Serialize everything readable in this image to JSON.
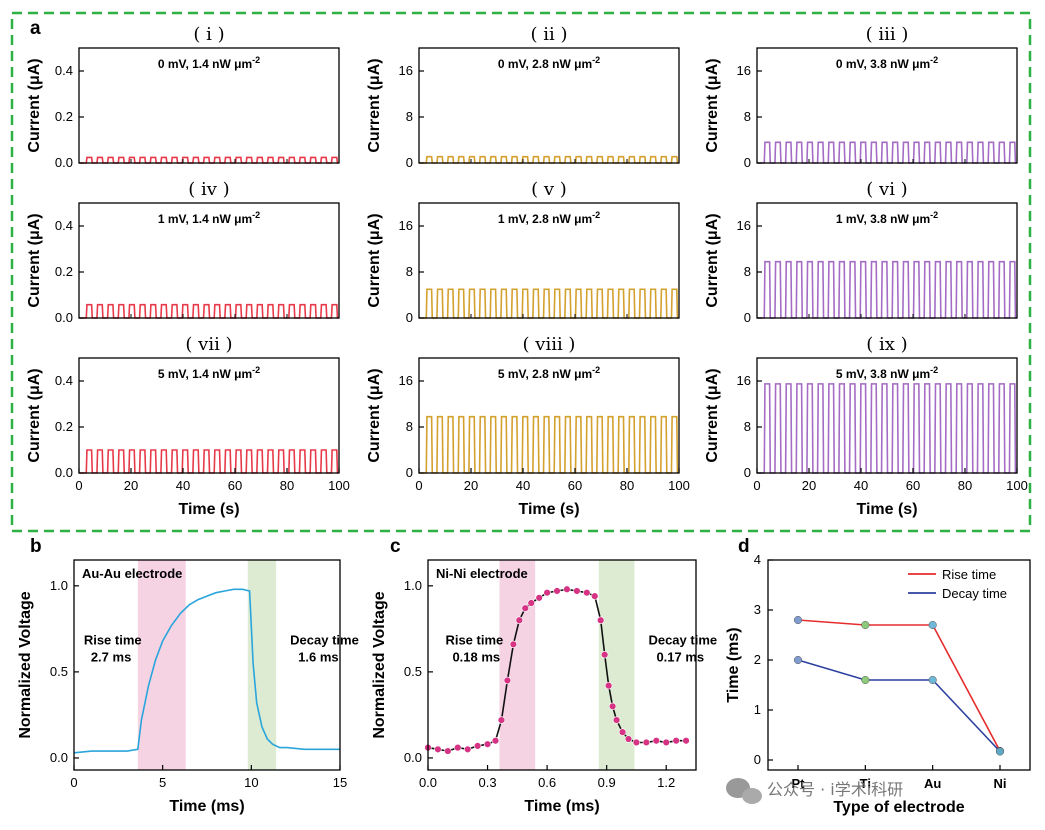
{
  "figure": {
    "dashed_box_color": "#2bb043",
    "watermark": "公众号 · i学术i科研",
    "watermark_icon": "wechat-icon"
  },
  "chart_data": [
    {
      "id": "a-i",
      "panel_label": "a",
      "type": "line",
      "title": "( i )",
      "annotation": "0 mV, 1.4 nW μm⁻²",
      "ylabel": "Current (μA)",
      "xlabel": "",
      "xlim": [
        0,
        100
      ],
      "ylim": [
        0,
        0.5
      ],
      "yticks": [
        0.0,
        0.2,
        0.4
      ],
      "xticks": [],
      "yticklabels": [
        "0.0",
        "0.2",
        "0.4"
      ],
      "color": "#e8394a",
      "pulse_period_s": 4.1,
      "pulse_amplitude": 0.024
    },
    {
      "id": "a-ii",
      "type": "line",
      "title": "( ii )",
      "annotation": "0 mV, 2.8 nW μm⁻²",
      "ylabel": "Current (μA)",
      "xlabel": "",
      "xlim": [
        0,
        100
      ],
      "ylim": [
        0,
        20
      ],
      "yticks": [
        0,
        8,
        16
      ],
      "xticks": [],
      "yticklabels": [
        "0",
        "8",
        "16"
      ],
      "color": "#d4a02e",
      "pulse_period_s": 4.1,
      "pulse_amplitude": 1.1
    },
    {
      "id": "a-iii",
      "type": "line",
      "title": "( iii )",
      "annotation": "0 mV, 3.8 nW μm⁻²",
      "ylabel": "Current (μA)",
      "xlabel": "",
      "xlim": [
        0,
        100
      ],
      "ylim": [
        0,
        20
      ],
      "yticks": [
        0,
        8,
        16
      ],
      "xticks": [],
      "yticklabels": [
        "0",
        "8",
        "16"
      ],
      "color": "#a46cc4",
      "pulse_period_s": 4.1,
      "pulse_amplitude": 3.6
    },
    {
      "id": "a-iv",
      "type": "line",
      "title": "( iv )",
      "annotation": "1 mV, 1.4 nW μm⁻²",
      "ylabel": "Current (μA)",
      "xlabel": "",
      "xlim": [
        0,
        100
      ],
      "ylim": [
        0,
        0.5
      ],
      "yticks": [
        0.0,
        0.2,
        0.4
      ],
      "xticks": [],
      "yticklabels": [
        "0.0",
        "0.2",
        "0.4"
      ],
      "color": "#e8394a",
      "pulse_period_s": 4.1,
      "pulse_amplitude": 0.058
    },
    {
      "id": "a-v",
      "type": "line",
      "title": "( v )",
      "annotation": "1 mV, 2.8 nW μm⁻²",
      "ylabel": "Current (μA)",
      "xlabel": "",
      "xlim": [
        0,
        100
      ],
      "ylim": [
        0,
        20
      ],
      "yticks": [
        0,
        8,
        16
      ],
      "xticks": [],
      "yticklabels": [
        "0",
        "8",
        "16"
      ],
      "color": "#d4a02e",
      "pulse_period_s": 4.1,
      "pulse_amplitude": 5.0
    },
    {
      "id": "a-vi",
      "type": "line",
      "title": "( vi )",
      "annotation": "1 mV, 3.8 nW μm⁻²",
      "ylabel": "Current (μA)",
      "xlabel": "",
      "xlim": [
        0,
        100
      ],
      "ylim": [
        0,
        20
      ],
      "yticks": [
        0,
        8,
        16
      ],
      "xticks": [],
      "yticklabels": [
        "0",
        "8",
        "16"
      ],
      "color": "#a46cc4",
      "pulse_period_s": 4.1,
      "pulse_amplitude": 9.8
    },
    {
      "id": "a-vii",
      "type": "line",
      "title": "( vii )",
      "annotation": "5 mV, 1.4 nW μm⁻²",
      "ylabel": "Current (μA)",
      "xlabel": "Time (s)",
      "xlim": [
        0,
        100
      ],
      "ylim": [
        0,
        0.5
      ],
      "yticks": [
        0.0,
        0.2,
        0.4
      ],
      "xticks": [
        0,
        20,
        40,
        60,
        80,
        100
      ],
      "yticklabels": [
        "0.0",
        "0.2",
        "0.4"
      ],
      "xticklabels": [
        "0",
        "20",
        "40",
        "60",
        "80",
        "100"
      ],
      "color": "#e8394a",
      "pulse_period_s": 4.1,
      "pulse_amplitude": 0.1
    },
    {
      "id": "a-viii",
      "type": "line",
      "title": "( viii )",
      "annotation": "5 mV, 2.8 nW μm⁻²",
      "ylabel": "Current (μA)",
      "xlabel": "Time (s)",
      "xlim": [
        0,
        100
      ],
      "ylim": [
        0,
        20
      ],
      "yticks": [
        0,
        8,
        16
      ],
      "xticks": [
        0,
        20,
        40,
        60,
        80,
        100
      ],
      "yticklabels": [
        "0",
        "8",
        "16"
      ],
      "xticklabels": [
        "0",
        "20",
        "40",
        "60",
        "80",
        "100"
      ],
      "color": "#d4a02e",
      "pulse_period_s": 4.1,
      "pulse_amplitude": 9.8
    },
    {
      "id": "a-ix",
      "type": "line",
      "title": "( ix )",
      "annotation": "5 mV, 3.8 nW μm⁻²",
      "ylabel": "Current (μA)",
      "xlabel": "Time (s)",
      "xlim": [
        0,
        100
      ],
      "ylim": [
        0,
        20
      ],
      "yticks": [
        0,
        8,
        16
      ],
      "xticks": [
        0,
        20,
        40,
        60,
        80,
        100
      ],
      "yticklabels": [
        "0",
        "8",
        "16"
      ],
      "xticklabels": [
        "0",
        "20",
        "40",
        "60",
        "80",
        "100"
      ],
      "color": "#a46cc4",
      "pulse_period_s": 4.1,
      "pulse_amplitude": 15.5
    },
    {
      "id": "b",
      "panel_label": "b",
      "type": "line",
      "legend_text": "Au-Au electrode",
      "xlabel": "Time (ms)",
      "ylabel": "Normalized Voltage",
      "xlim": [
        0,
        15
      ],
      "ylim": [
        -0.07,
        1.15
      ],
      "xticks": [
        0,
        5,
        10,
        15
      ],
      "xticklabels": [
        "0",
        "5",
        "10",
        "15"
      ],
      "yticks": [
        0.0,
        0.5,
        1.0
      ],
      "yticklabels": [
        "0.0",
        "0.5",
        "1.0"
      ],
      "color": "#2aa5dc",
      "rise_band": [
        3.6,
        6.3
      ],
      "decay_band": [
        9.8,
        11.4
      ],
      "rise_label": "Rise time",
      "rise_value": "2.7 ms",
      "decay_label": "Decay time",
      "decay_value": "1.6 ms",
      "rise_color": "#f5d3e3",
      "decay_color": "#dcebd2",
      "x": [
        0,
        1,
        2,
        3,
        3.6,
        3.8,
        4.2,
        4.6,
        5.0,
        5.5,
        6.0,
        6.5,
        7.0,
        7.5,
        8.0,
        8.5,
        9.0,
        9.5,
        9.9,
        10.1,
        10.3,
        10.6,
        10.9,
        11.2,
        11.6,
        12,
        13,
        14,
        15
      ],
      "y": [
        0.03,
        0.04,
        0.04,
        0.04,
        0.05,
        0.22,
        0.42,
        0.57,
        0.68,
        0.77,
        0.84,
        0.89,
        0.92,
        0.94,
        0.96,
        0.97,
        0.98,
        0.98,
        0.97,
        0.55,
        0.32,
        0.18,
        0.11,
        0.08,
        0.06,
        0.06,
        0.05,
        0.05,
        0.05
      ]
    },
    {
      "id": "c",
      "panel_label": "c",
      "type": "line",
      "legend_text": "Ni-Ni electrode",
      "xlabel": "Time (ms)",
      "ylabel": "Normalized Voltage",
      "xlim": [
        0,
        1.35
      ],
      "ylim": [
        -0.07,
        1.15
      ],
      "xticks": [
        0.0,
        0.3,
        0.6,
        0.9,
        1.2
      ],
      "xticklabels": [
        "0.0",
        "0.3",
        "0.6",
        "0.9",
        "1.2"
      ],
      "yticks": [
        0.0,
        0.5,
        1.0
      ],
      "yticklabels": [
        "0.0",
        "0.5",
        "1.0"
      ],
      "color": "#111111",
      "marker_color": "#d63384",
      "rise_band": [
        0.36,
        0.54
      ],
      "decay_band": [
        0.86,
        1.04
      ],
      "rise_label": "Rise time",
      "rise_value": "0.18 ms",
      "decay_label": "Decay time",
      "decay_value": "0.17 ms",
      "rise_color": "#f5d3e3",
      "decay_color": "#dcebd2",
      "x": [
        0.0,
        0.05,
        0.1,
        0.15,
        0.2,
        0.25,
        0.3,
        0.34,
        0.37,
        0.4,
        0.43,
        0.46,
        0.49,
        0.52,
        0.56,
        0.6,
        0.65,
        0.7,
        0.75,
        0.8,
        0.84,
        0.87,
        0.89,
        0.91,
        0.93,
        0.95,
        0.98,
        1.01,
        1.05,
        1.1,
        1.15,
        1.2,
        1.25,
        1.3
      ],
      "y": [
        0.06,
        0.05,
        0.04,
        0.06,
        0.05,
        0.07,
        0.08,
        0.1,
        0.22,
        0.45,
        0.66,
        0.8,
        0.87,
        0.9,
        0.93,
        0.96,
        0.97,
        0.98,
        0.97,
        0.96,
        0.94,
        0.8,
        0.6,
        0.42,
        0.3,
        0.22,
        0.15,
        0.11,
        0.09,
        0.09,
        0.1,
        0.09,
        0.1,
        0.1
      ]
    },
    {
      "id": "d",
      "panel_label": "d",
      "type": "line",
      "xlabel": "Type of electrode",
      "ylabel": "Time (ms)",
      "categories": [
        "Pt",
        "Ti",
        "Au",
        "Ni"
      ],
      "ylim": [
        -0.2,
        4
      ],
      "yticks": [
        0,
        1,
        2,
        3,
        4
      ],
      "yticklabels": [
        "0",
        "1",
        "2",
        "3",
        "4"
      ],
      "legend_position": "top-right",
      "series": [
        {
          "name": "Rise time",
          "values": [
            2.8,
            2.7,
            2.7,
            0.18
          ],
          "color": "#e52d2d"
        },
        {
          "name": "Decay time",
          "values": [
            2.0,
            1.6,
            1.6,
            0.17
          ],
          "color": "#2b3fa0"
        }
      ],
      "marker_colors": [
        "#7f9ccf",
        "#8dc97a",
        "#6fb8d8",
        "#5fa9c4"
      ]
    }
  ]
}
